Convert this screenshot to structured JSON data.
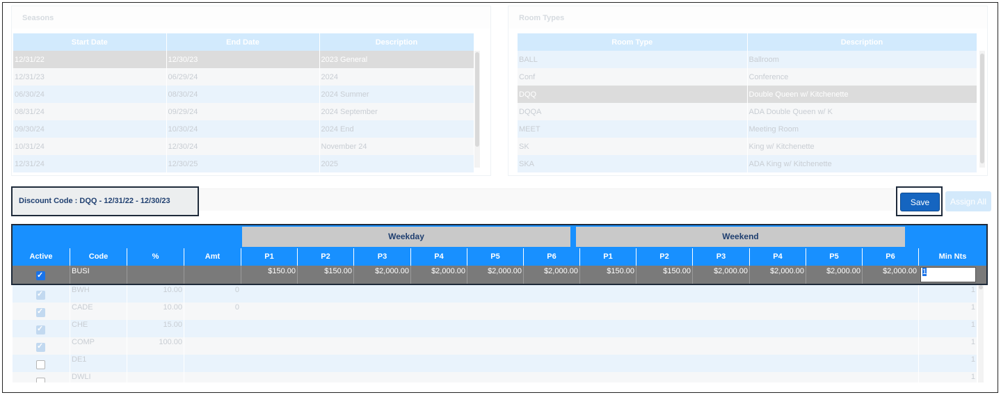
{
  "seasons": {
    "title": "Seasons",
    "columns": [
      "Start Date",
      "End Date",
      "Description"
    ],
    "rows": [
      {
        "start": "12/31/22",
        "end": "12/30/23",
        "desc": "2023 General"
      },
      {
        "start": "12/31/23",
        "end": "06/29/24",
        "desc": "2024"
      },
      {
        "start": "06/30/24",
        "end": "08/30/24",
        "desc": "2024 Summer"
      },
      {
        "start": "08/31/24",
        "end": "09/29/24",
        "desc": "2024 September"
      },
      {
        "start": "09/30/24",
        "end": "10/30/24",
        "desc": "2024 End"
      },
      {
        "start": "10/31/24",
        "end": "12/30/24",
        "desc": "November 24"
      },
      {
        "start": "12/31/24",
        "end": "12/30/25",
        "desc": "2025"
      }
    ]
  },
  "room_types": {
    "title": "Room Types",
    "columns": [
      "Room Type",
      "Description"
    ],
    "rows": [
      {
        "type": "BALL",
        "desc": "Ballroom"
      },
      {
        "type": "Conf",
        "desc": "Conference"
      },
      {
        "type": "DQQ",
        "desc": "Double Queen w/ Kitchenette"
      },
      {
        "type": "DQQA",
        "desc": "ADA Double Queen w/ K"
      },
      {
        "type": "MEET",
        "desc": "Meeting Room"
      },
      {
        "type": "SK",
        "desc": "King w/ Kitchenette"
      },
      {
        "type": "SKA",
        "desc": "ADA King w/ Kitchenette"
      }
    ]
  },
  "discount_code_label": "Discount Code : DQQ - 12/31/22 - 12/30/23",
  "buttons": {
    "save": "Save",
    "assign_all": "Assign All"
  },
  "rates": {
    "band_weekday": "Weekday",
    "band_weekend": "Weekend",
    "columns": [
      "Active",
      "Code",
      "%",
      "Amt",
      "P1",
      "P2",
      "P3",
      "P4",
      "P5",
      "P6",
      "P1",
      "P2",
      "P3",
      "P4",
      "P5",
      "P6",
      "Min Nts"
    ],
    "selected": {
      "code": "BUSI",
      "weekday": [
        "$150.00",
        "$150.00",
        "$2,000.00",
        "$2,000.00",
        "$2,000.00",
        "$2,000.00"
      ],
      "weekend": [
        "$150.00",
        "$150.00",
        "$2,000.00",
        "$2,000.00",
        "$2,000.00",
        "$2,000.00"
      ],
      "min_nts": "1"
    },
    "rows": [
      {
        "code": "BWH",
        "pct": "10.00",
        "amt": "0",
        "min": "1",
        "active": "faded"
      },
      {
        "code": "CADE",
        "pct": "10.00",
        "amt": "0",
        "min": "1",
        "active": "faded"
      },
      {
        "code": "CHE",
        "pct": "15.00",
        "amt": "",
        "min": "1",
        "active": "faded"
      },
      {
        "code": "COMP",
        "pct": "100.00",
        "amt": "",
        "min": "1",
        "active": "faded"
      },
      {
        "code": "DE1",
        "pct": "",
        "amt": "",
        "min": "1",
        "active": "off"
      },
      {
        "code": "DWLI",
        "pct": "",
        "amt": "",
        "min": "1",
        "active": "off"
      }
    ]
  }
}
